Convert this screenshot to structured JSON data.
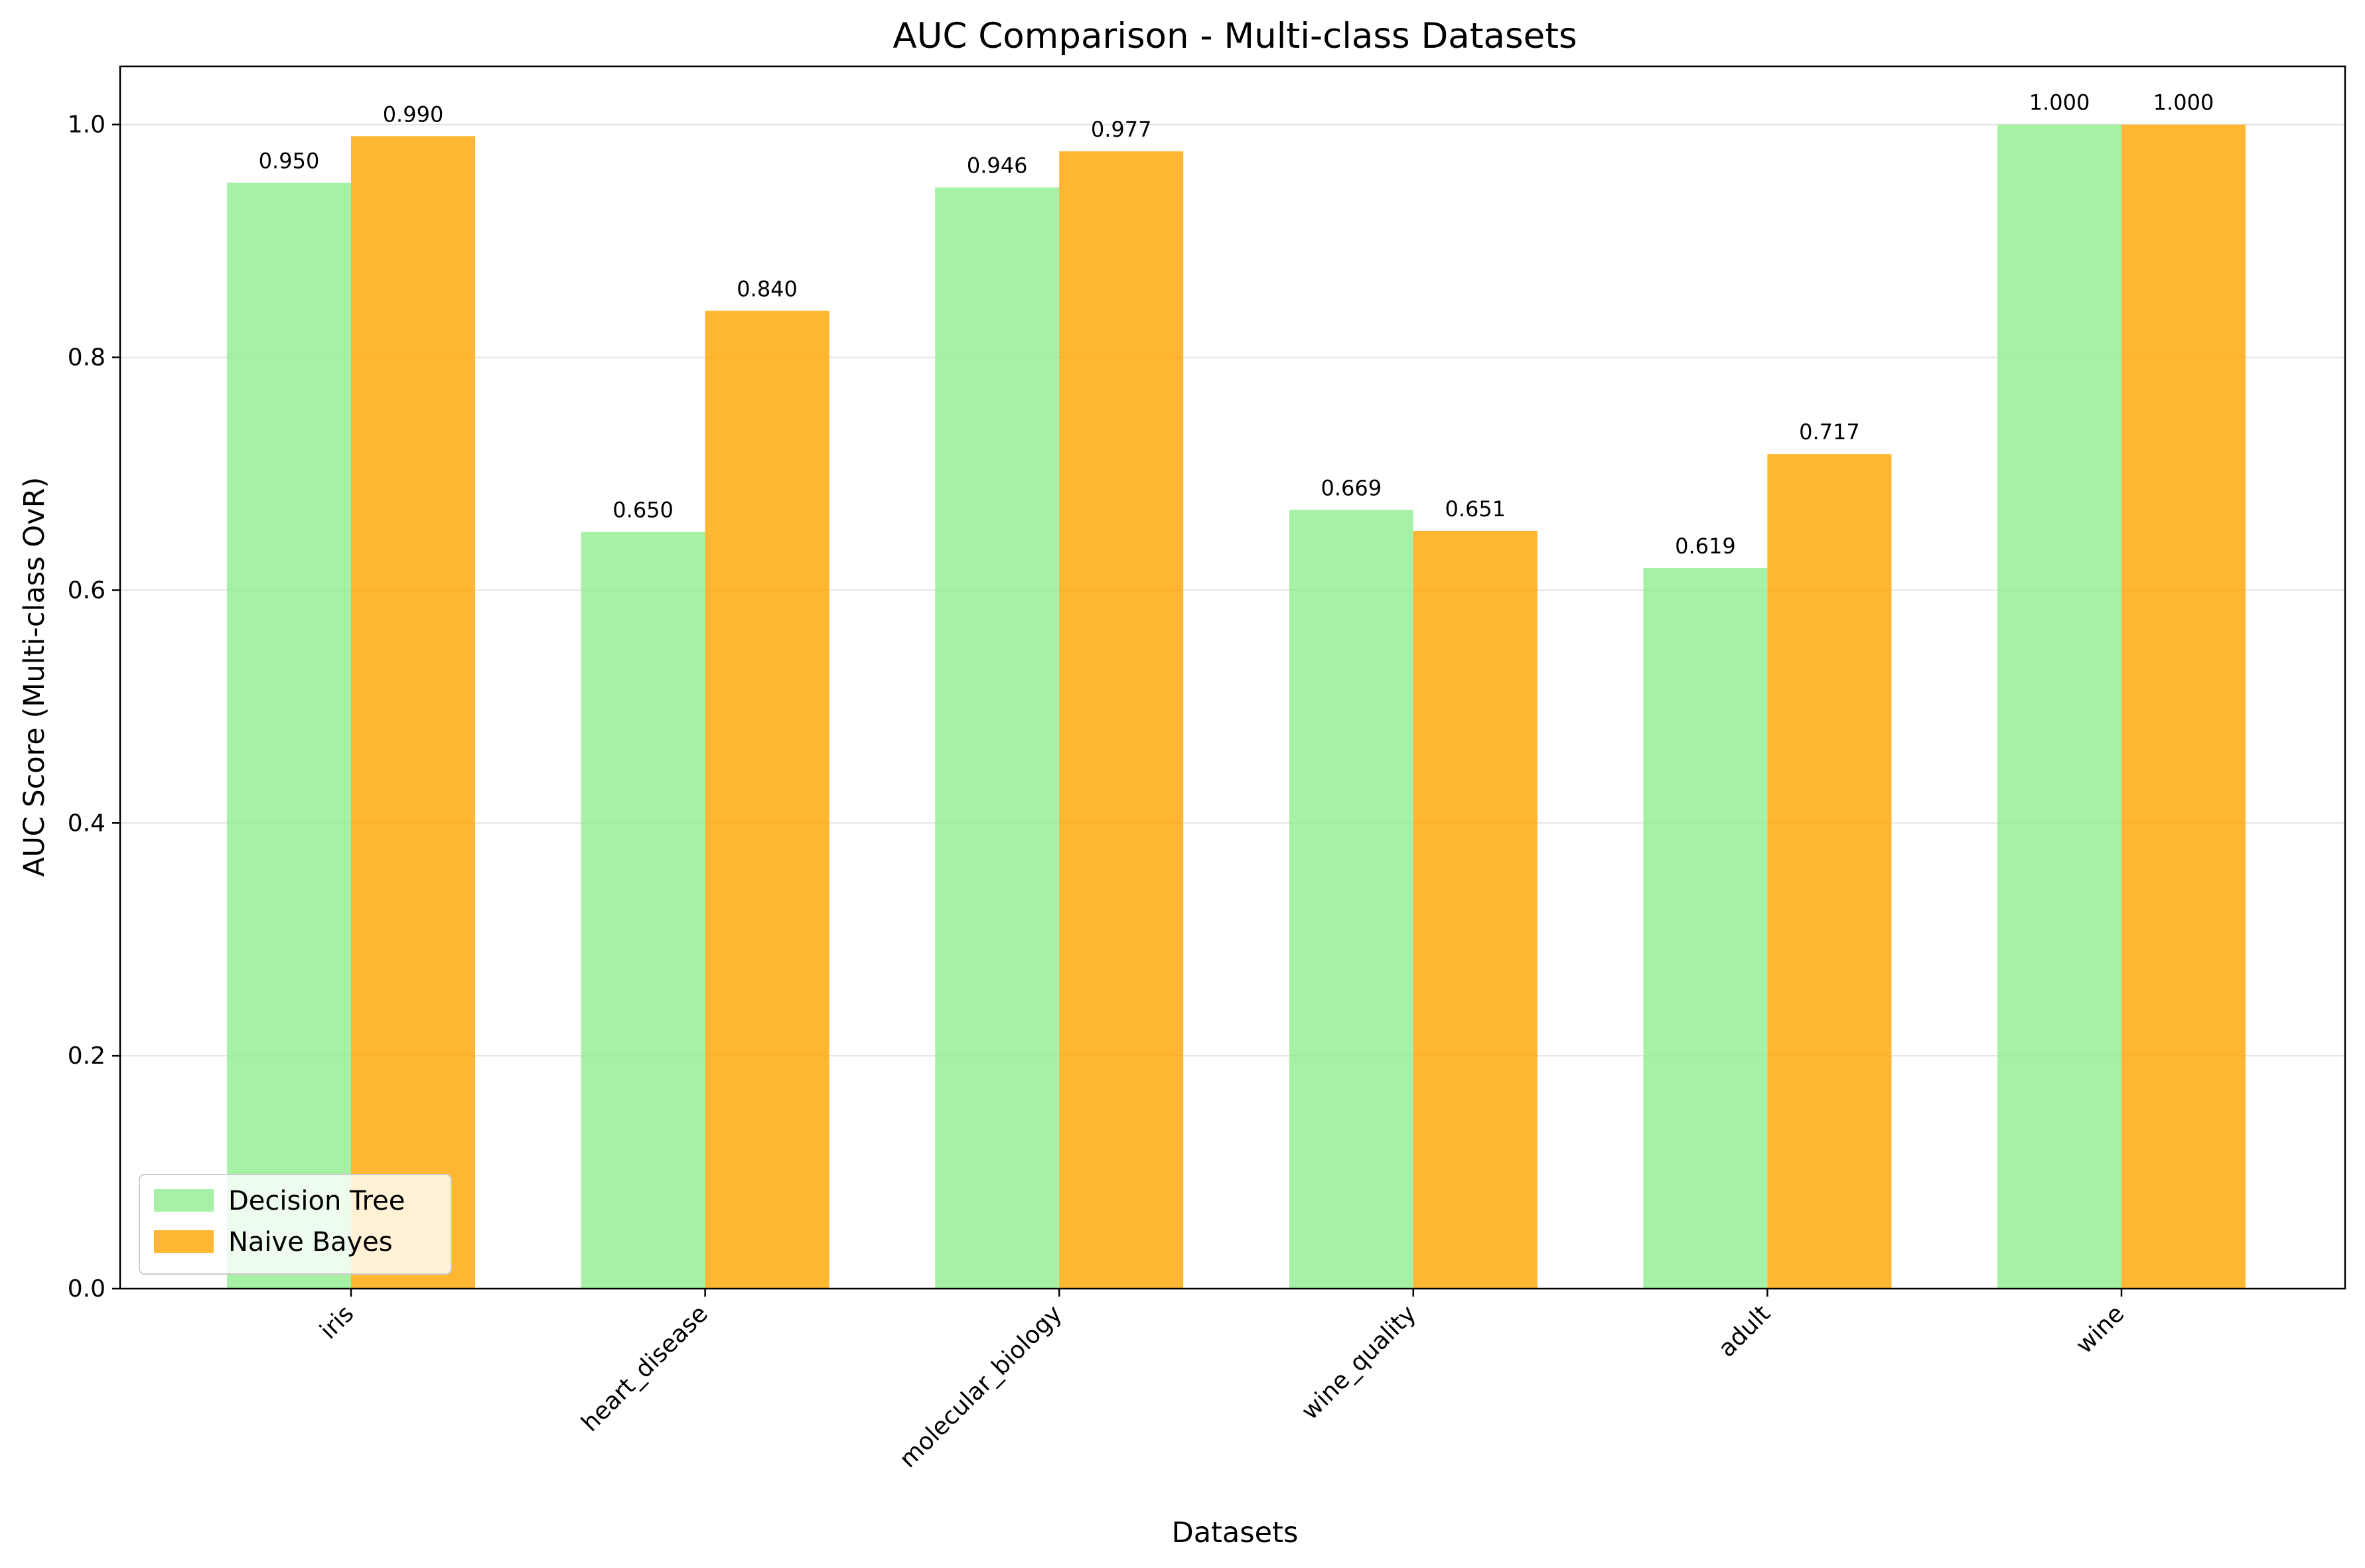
{
  "chart_data": {
    "type": "bar",
    "title": "AUC Comparison - Multi-class Datasets",
    "xlabel": "Datasets",
    "ylabel": "AUC Score (Multi-class OvR)",
    "categories": [
      "iris",
      "heart_disease",
      "molecular_biology",
      "wine_quality",
      "adult",
      "wine"
    ],
    "series": [
      {
        "name": "Decision Tree",
        "color": "#90ee90",
        "values": [
          0.95,
          0.65,
          0.946,
          0.669,
          0.619,
          1.0
        ],
        "labels": [
          "0.950",
          "0.650",
          "0.946",
          "0.669",
          "0.619",
          "1.000"
        ]
      },
      {
        "name": "Naive Bayes",
        "color": "#ffa500",
        "values": [
          0.99,
          0.84,
          0.977,
          0.651,
          0.717,
          1.0
        ],
        "labels": [
          "0.990",
          "0.840",
          "0.977",
          "0.651",
          "0.717",
          "1.000"
        ]
      }
    ],
    "ylim": [
      0,
      1.05
    ],
    "yticks": [
      "0.0",
      "0.2",
      "0.4",
      "0.6",
      "0.8",
      "1.0"
    ],
    "grid": "y",
    "legend_position": "lower-left"
  }
}
